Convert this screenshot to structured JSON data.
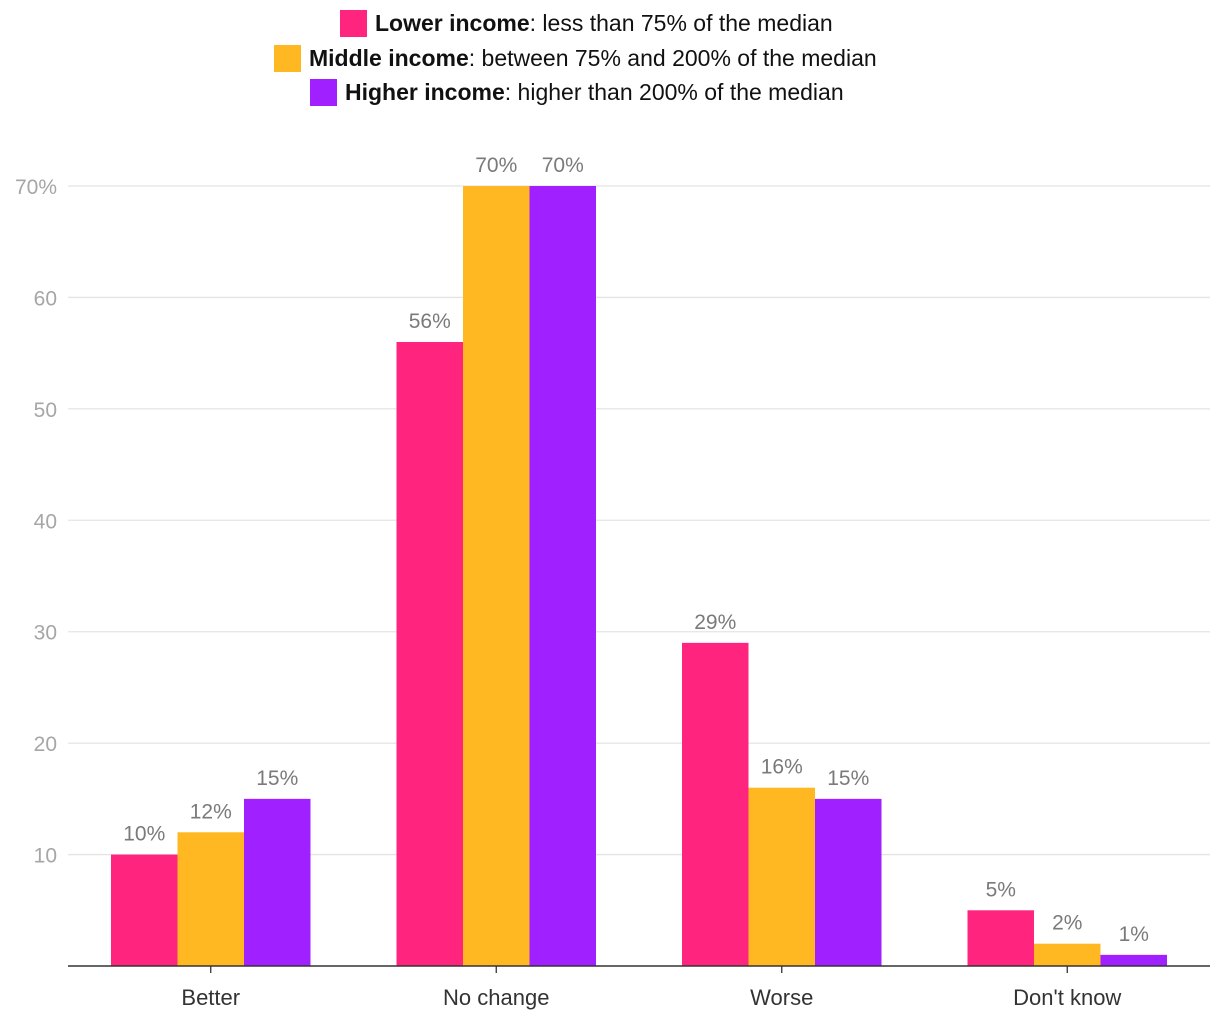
{
  "legend": [
    {
      "name": "Lower income",
      "desc": ": less than 75% of the median",
      "color": "#ff257e"
    },
    {
      "name": "Middle income",
      "desc": ": between 75% and 200% of the median",
      "color": "#ffb822"
    },
    {
      "name": "Higher income",
      "desc": ": higher than 200% of the median",
      "color": "#a020ff"
    }
  ],
  "chart_data": {
    "type": "bar",
    "title": "",
    "xlabel": "",
    "ylabel": "",
    "categories": [
      "Better",
      "No change",
      "Worse",
      "Don't know"
    ],
    "series": [
      {
        "name": "Lower income",
        "values": [
          10,
          56,
          29,
          5
        ],
        "color": "#ff257e"
      },
      {
        "name": "Middle income",
        "values": [
          12,
          70,
          16,
          2
        ],
        "color": "#ffb822"
      },
      {
        "name": "Higher income",
        "values": [
          15,
          70,
          15,
          1
        ],
        "color": "#a020ff"
      }
    ],
    "data_labels": [
      [
        "10%",
        "56%",
        "29%",
        "5%"
      ],
      [
        "12%",
        "70%",
        "16%",
        "2%"
      ],
      [
        "15%",
        "70%",
        "15%",
        "1%"
      ]
    ],
    "yticks": [
      10,
      20,
      30,
      40,
      50,
      60,
      70
    ],
    "ytick_labels": [
      "10",
      "20",
      "30",
      "40",
      "50",
      "60",
      "70%"
    ],
    "ylim": [
      0,
      70
    ],
    "grid": true,
    "legend_position": "top"
  }
}
